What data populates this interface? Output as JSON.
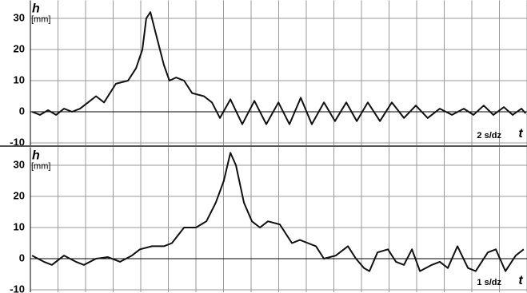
{
  "chart_data": [
    {
      "type": "line",
      "y_label": "h",
      "y_unit": "[mm]",
      "x_label": "t",
      "annotation": "2 s/dz",
      "color": "#111111",
      "grid": true,
      "xlim": [
        0,
        18
      ],
      "xticks": [
        0,
        1,
        2,
        3,
        4,
        5,
        6,
        7,
        8,
        9,
        10,
        11,
        12,
        13,
        14,
        15,
        16,
        17,
        18
      ],
      "ylim": [
        -10,
        35
      ],
      "yticks": [
        -10,
        0,
        10,
        20,
        30
      ],
      "x": [
        0.06,
        0.35,
        0.64,
        0.93,
        1.22,
        1.51,
        1.8,
        2.09,
        2.38,
        2.67,
        3.1,
        3.54,
        3.83,
        4.06,
        4.2,
        4.35,
        4.55,
        4.84,
        5.04,
        5.28,
        5.57,
        5.86,
        6.29,
        6.58,
        6.87,
        7.25,
        7.68,
        8.12,
        8.55,
        8.99,
        9.39,
        9.8,
        10.2,
        10.64,
        11.04,
        11.45,
        11.83,
        12.23,
        12.67,
        13.1,
        13.54,
        13.97,
        14.4,
        14.84,
        15.28,
        15.71,
        16.06,
        16.43,
        16.78,
        17.16,
        17.48,
        17.8,
        17.95
      ],
      "values": [
        0,
        -1,
        0.5,
        -1,
        1,
        0,
        1,
        3,
        5,
        3,
        9,
        10,
        14,
        20,
        30,
        32,
        25,
        15,
        10,
        11,
        10,
        6,
        5,
        3,
        -2,
        4,
        -4,
        3.5,
        -4,
        3,
        -4,
        4.5,
        -4,
        3,
        -3,
        3,
        -3,
        3,
        -3,
        3,
        -2,
        2,
        -2,
        1,
        -1,
        1,
        -1,
        2,
        -1,
        1.5,
        -1,
        1,
        -0.5
      ]
    },
    {
      "type": "line",
      "y_label": "h",
      "y_unit": "[mm]",
      "x_label": "t",
      "annotation": "1 s/dz",
      "color": "#111111",
      "grid": true,
      "xlim": [
        0,
        18
      ],
      "xticks": [
        0,
        1,
        2,
        3,
        4,
        5,
        6,
        7,
        8,
        9,
        10,
        11,
        12,
        13,
        14,
        15,
        16,
        17,
        18
      ],
      "ylim": [
        -10,
        35
      ],
      "yticks": [
        -10,
        0,
        10,
        20,
        30
      ],
      "x": [
        0.06,
        0.49,
        0.78,
        1.22,
        1.65,
        1.94,
        2.38,
        2.81,
        3.25,
        3.68,
        3.97,
        4.41,
        4.84,
        5.13,
        5.57,
        6.0,
        6.38,
        6.72,
        7.01,
        7.25,
        7.45,
        7.74,
        8.03,
        8.32,
        8.61,
        9.04,
        9.48,
        9.77,
        10.06,
        10.35,
        10.64,
        11.07,
        11.51,
        11.8,
        12.09,
        12.29,
        12.58,
        12.96,
        13.25,
        13.54,
        13.83,
        14.12,
        14.55,
        14.84,
        15.13,
        15.48,
        15.86,
        16.14,
        16.58,
        16.87,
        17.22,
        17.59,
        17.88
      ],
      "values": [
        1,
        -1,
        -2,
        1,
        -1,
        -2,
        0,
        0.5,
        -1,
        1,
        3,
        4,
        4,
        5,
        10,
        10,
        12,
        18,
        25,
        34,
        30,
        18,
        12,
        10,
        12,
        11,
        5,
        6,
        5,
        4,
        0,
        1,
        4,
        0,
        -3,
        -4,
        2,
        3,
        -1,
        -2,
        3,
        -4,
        -2,
        -1,
        -3,
        4,
        -3,
        -4,
        2,
        3,
        -4,
        1,
        3
      ]
    }
  ]
}
